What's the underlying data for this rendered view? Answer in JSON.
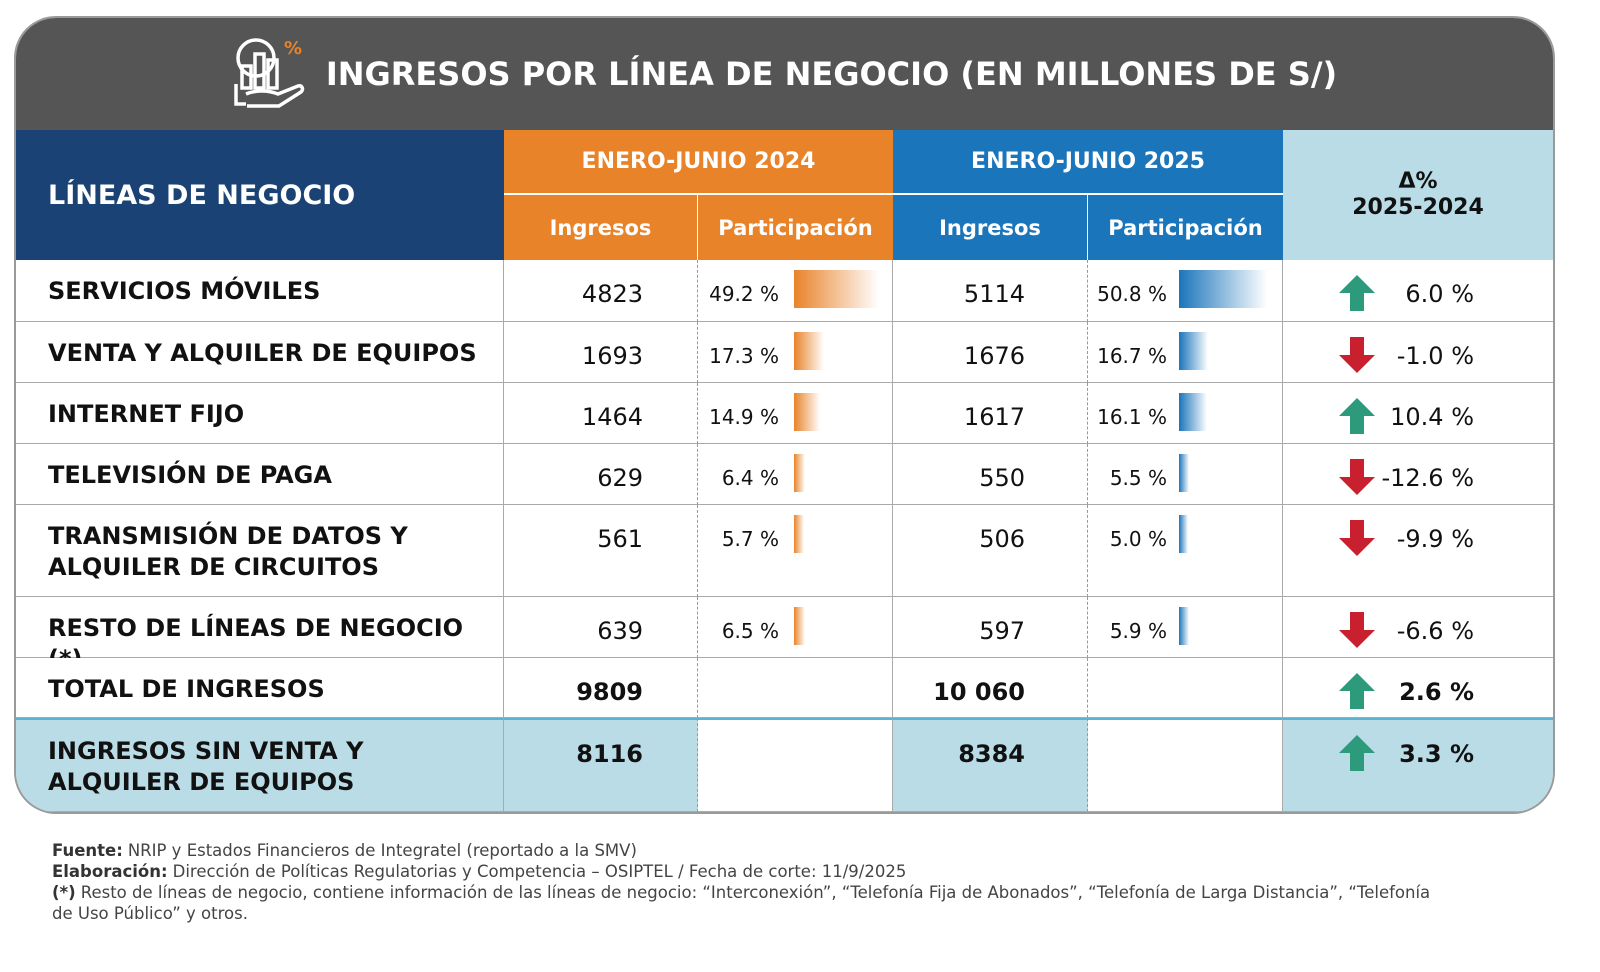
{
  "title": "INGRESOS POR LÍNEA DE NEGOCIO (EN MILLONES DE S/)",
  "header": {
    "lines": "LÍNEAS DE NEGOCIO",
    "period_2024": "ENERO-JUNIO 2024",
    "period_2025": "ENERO-JUNIO 2025",
    "sub": [
      "Ingresos",
      "Participación"
    ],
    "delta": [
      "Δ%",
      "2025-2024"
    ]
  },
  "table": {
    "rows": [
      {
        "label": [
          "SERVICIOS MÓVILES"
        ],
        "ingresos_2024": "4823",
        "share_2024": {
          "value": 49.2,
          "label": "49.2 %"
        },
        "ingresos_2025": "5114",
        "share_2025": {
          "value": 50.8,
          "label": "50.8 %"
        },
        "delta": {
          "value": 6.0,
          "label": "6.0 %"
        }
      },
      {
        "label": [
          "VENTA Y ALQUILER DE EQUIPOS"
        ],
        "ingresos_2024": "1693",
        "share_2024": {
          "value": 17.3,
          "label": "17.3 %"
        },
        "ingresos_2025": "1676",
        "share_2025": {
          "value": 16.7,
          "label": "16.7 %"
        },
        "delta": {
          "value": -1.0,
          "label": "-1.0 %"
        }
      },
      {
        "label": [
          "INTERNET FIJO"
        ],
        "ingresos_2024": "1464",
        "share_2024": {
          "value": 14.9,
          "label": "14.9 %"
        },
        "ingresos_2025": "1617",
        "share_2025": {
          "value": 16.1,
          "label": "16.1 %"
        },
        "delta": {
          "value": 10.4,
          "label": "10.4 %"
        }
      },
      {
        "label": [
          "TELEVISIÓN DE PAGA"
        ],
        "ingresos_2024": "629",
        "share_2024": {
          "value": 6.4,
          "label": "6.4 %"
        },
        "ingresos_2025": "550",
        "share_2025": {
          "value": 5.5,
          "label": "5.5 %"
        },
        "delta": {
          "value": -12.6,
          "label": "-12.6 %"
        }
      },
      {
        "label": [
          "TRANSMISIÓN DE DATOS Y",
          "ALQUILER DE CIRCUITOS"
        ],
        "ingresos_2024": "561",
        "share_2024": {
          "value": 5.7,
          "label": "5.7 %"
        },
        "ingresos_2025": "506",
        "share_2025": {
          "value": 5.0,
          "label": "5.0 %"
        },
        "delta": {
          "value": -9.9,
          "label": "-9.9 %"
        }
      },
      {
        "label": [
          "RESTO DE LÍNEAS DE NEGOCIO (*)"
        ],
        "ingresos_2024": "639",
        "share_2024": {
          "value": 6.5,
          "label": "6.5 %"
        },
        "ingresos_2025": "597",
        "share_2025": {
          "value": 5.9,
          "label": "5.9 %"
        },
        "delta": {
          "value": -6.6,
          "label": "-6.6 %"
        }
      },
      {
        "label": [
          "TOTAL DE INGRESOS"
        ],
        "ingresos_2024": "9809",
        "ingresos_2025": "10 060",
        "delta": {
          "value": 2.6,
          "label": "2.6 %"
        }
      },
      {
        "label": [
          "INGRESOS SIN VENTA Y",
          "ALQUILER DE EQUIPOS"
        ],
        "ingresos_2024": "8116",
        "ingresos_2025": "8384",
        "delta": {
          "value": 3.3,
          "label": "3.3 %"
        }
      }
    ]
  },
  "notes": [
    {
      "bold": "Fuente:",
      "text": "NRIP y Estados Financieros de Integratel (reportado a la SMV)"
    },
    {
      "bold": "Elaboración:",
      "text": "Dirección de Políticas Regulatorias y Competencia – OSIPTEL / Fecha de corte: 11/9/2025"
    },
    {
      "bold": "(*)",
      "text": "Resto de líneas de negocio, contiene información de las líneas de negocio: “Interconexión”, “Telefonía Fija de Abonados”, “Telefonía de Larga Distancia”, “Telefonía de Uso Público” y otros."
    }
  ]
}
